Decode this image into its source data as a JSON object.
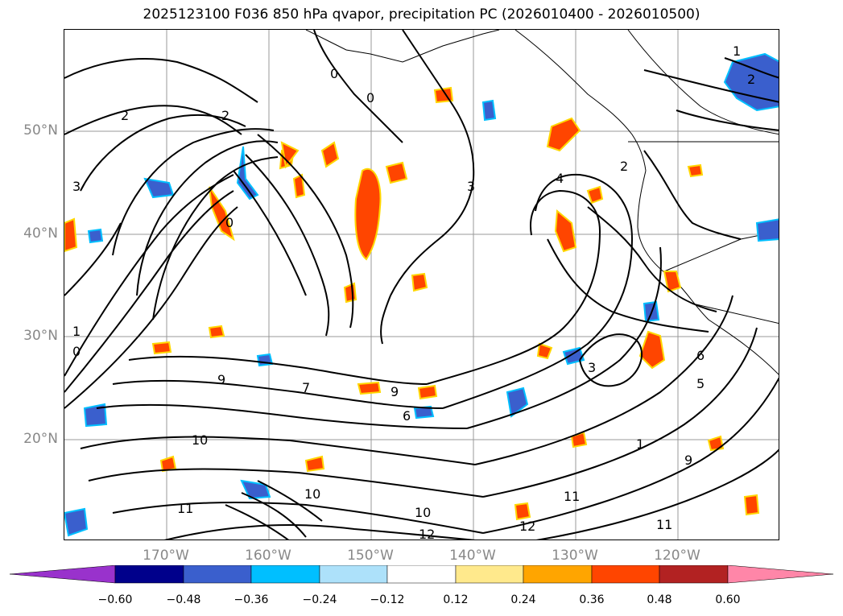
{
  "title": "2025123100 F036 850 hPa qvapor, precipitation PC (2026010400 - 2026010500)",
  "map": {
    "lat_labels": [
      "50°N",
      "40°N",
      "30°N",
      "20°N"
    ],
    "lon_labels": [
      "170°W",
      "160°W",
      "150°W",
      "140°W",
      "130°W",
      "120°W"
    ],
    "contour_labels": [
      "0",
      "0",
      "1",
      "2",
      "2",
      "2",
      "3",
      "3",
      "3",
      "4",
      "6",
      "7",
      "9",
      "9",
      "10",
      "10",
      "10",
      "11",
      "11",
      "11",
      "12",
      "12",
      "1",
      "0",
      "0",
      "1",
      "2",
      "5",
      "6",
      "9"
    ]
  },
  "colorbar": {
    "ticks": [
      "−0.60",
      "−0.48",
      "−0.36",
      "−0.24",
      "−0.12",
      "0.12",
      "0.24",
      "0.36",
      "0.48",
      "0.60"
    ],
    "colors": [
      "#9932CC",
      "#00008B",
      "#3A5FCD",
      "#00BFFF",
      "#ADE1FA",
      "#FFFFFF",
      "#FFE98C",
      "#FFA500",
      "#FF4500",
      "#B22222",
      "#FF86A8"
    ]
  },
  "colors": {
    "positive_fill": "#FF4500",
    "positive_edge": "#FFD700",
    "negative_fill": "#3A5FCD",
    "negative_edge": "#00BFFF",
    "contour": "#000000",
    "grid": "#999999"
  }
}
